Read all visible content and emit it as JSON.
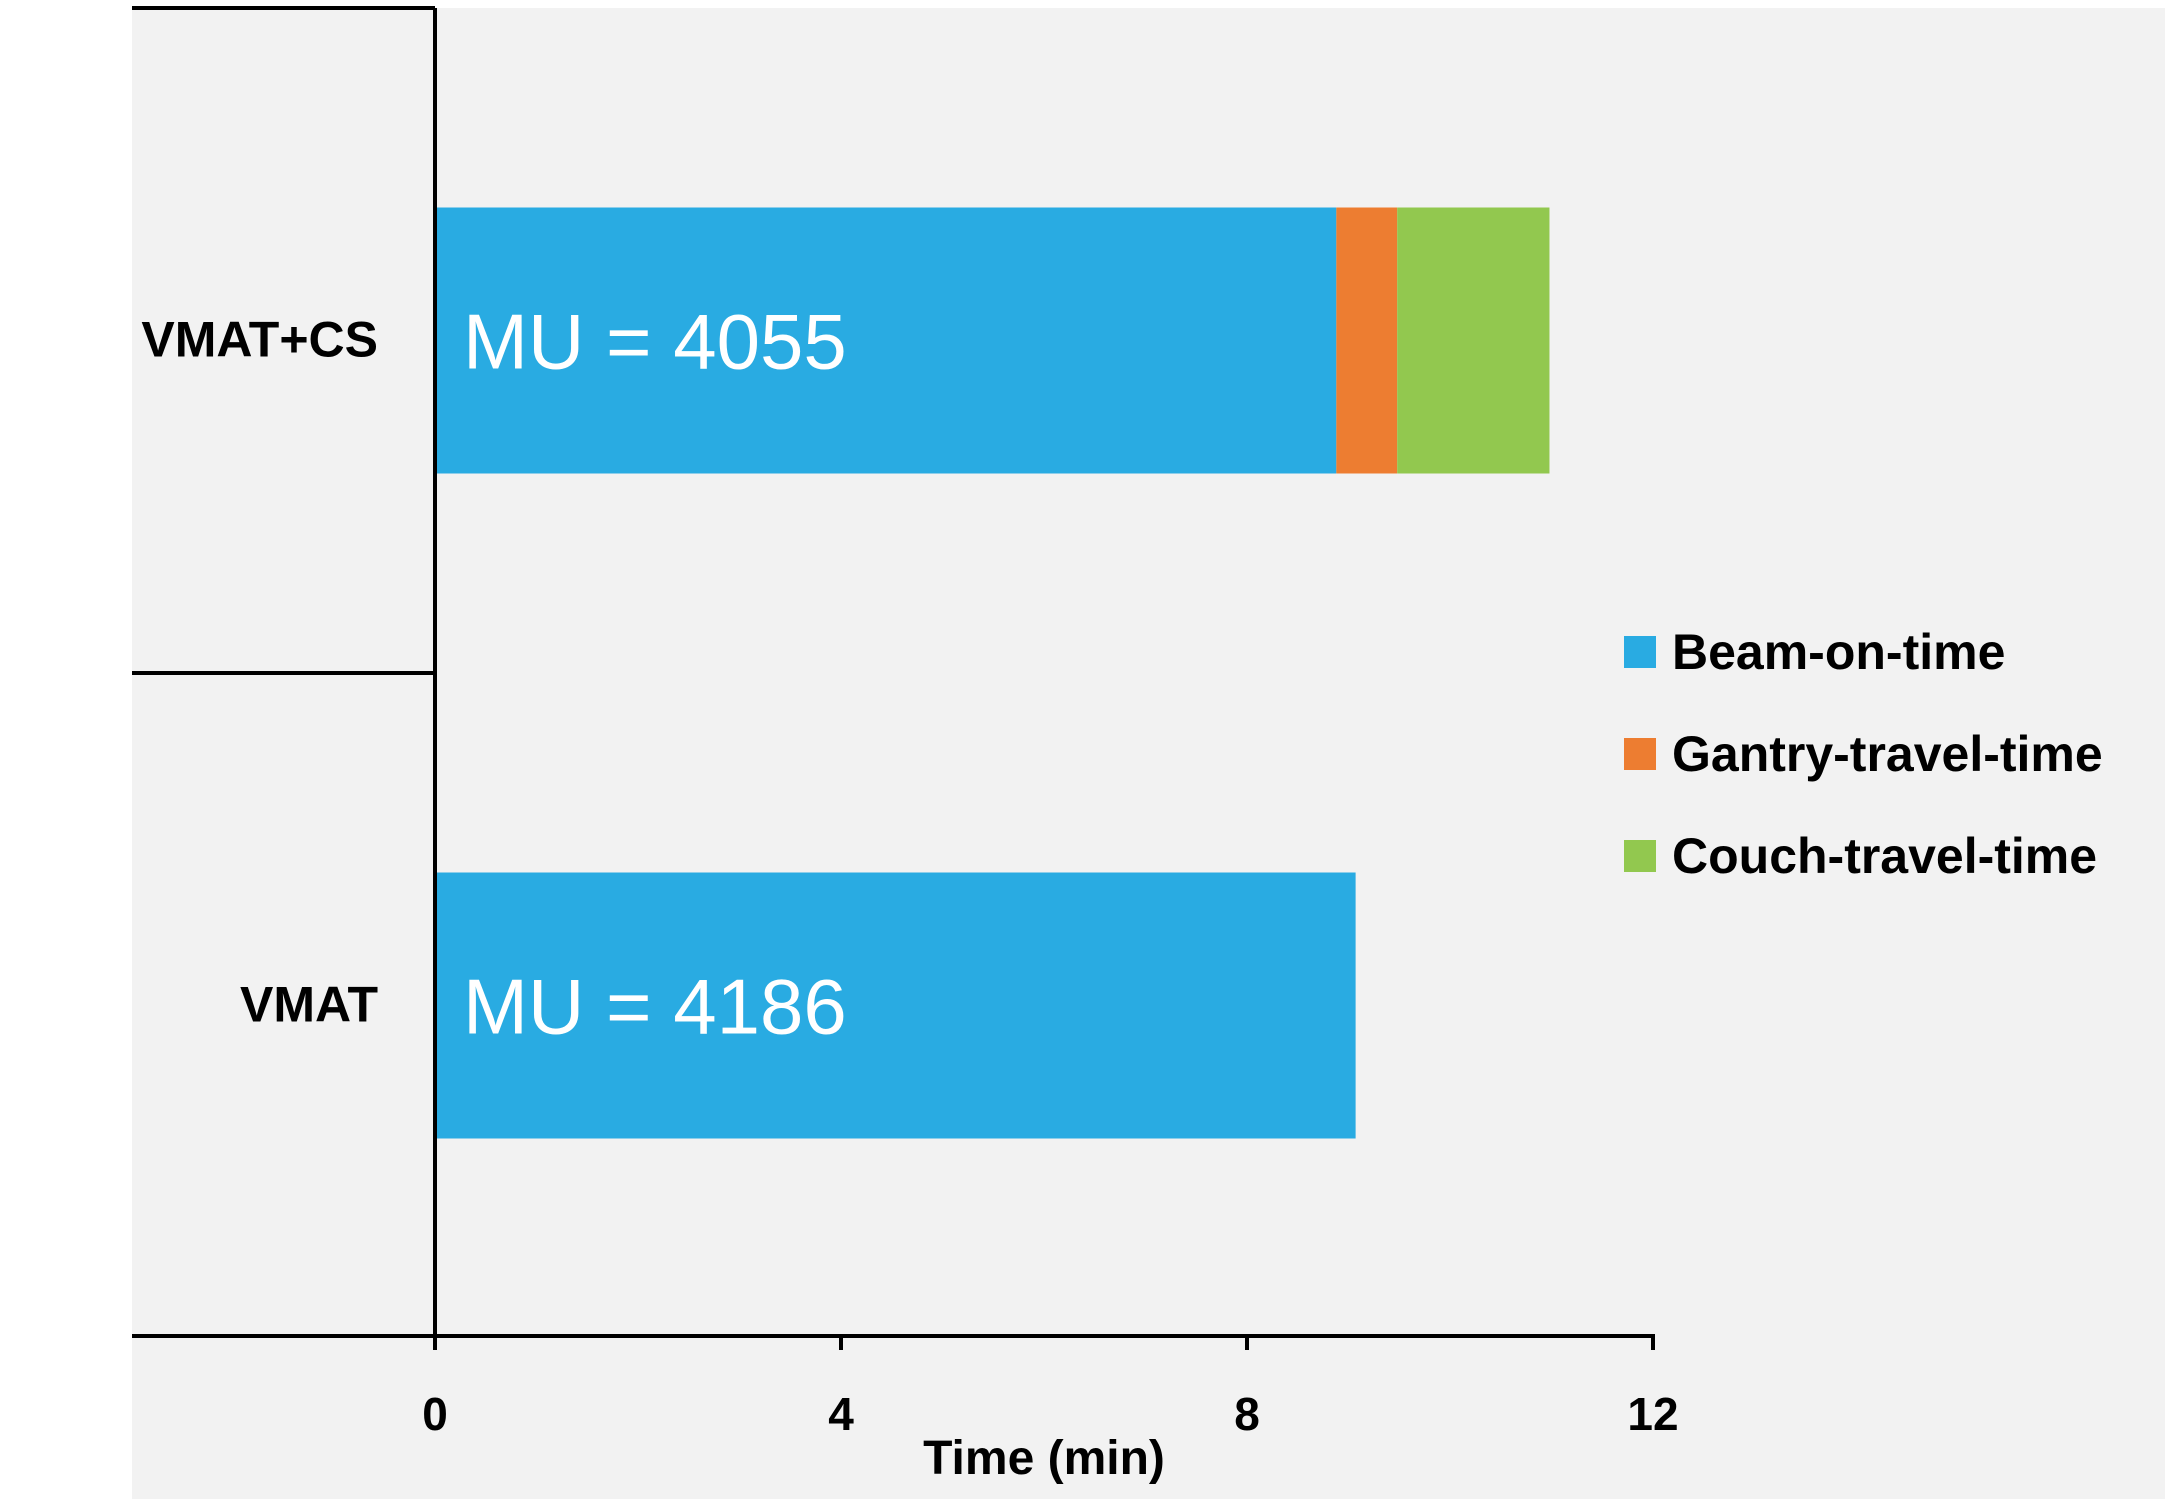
{
  "chart_data": {
    "type": "bar",
    "orientation": "horizontal",
    "stacked": true,
    "categories": [
      "VMAT+CS",
      "VMAT"
    ],
    "series": [
      {
        "name": "Beam-on-time",
        "color": "#29ABE2",
        "values": [
          8.88,
          9.07
        ]
      },
      {
        "name": "Gantry-travel-time",
        "color": "#ED7D31",
        "values": [
          0.6,
          0
        ]
      },
      {
        "name": "Couch-travel-time",
        "color": "#92C84F",
        "values": [
          1.5,
          0
        ]
      }
    ],
    "bar_labels": [
      "MU = 4055",
      "MU = 4186"
    ],
    "xlabel": "Time (min)",
    "ylabel": "",
    "xlim": [
      0,
      12
    ],
    "xticks": [
      "0",
      "4",
      "8",
      "12"
    ],
    "xtick_values": [
      0,
      4,
      8,
      12
    ],
    "legend_position": "right",
    "grid": false,
    "background_color": "#F2F2F2"
  }
}
